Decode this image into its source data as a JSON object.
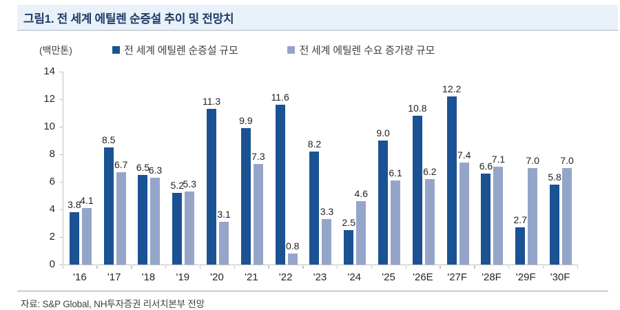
{
  "title": "그림1. 전 세계 에틸렌 순증설 추이 및 전망치",
  "unit_label": "(백만톤)",
  "source": "자료: S&P Global, NH투자증권 리서치본부 전망",
  "colors": {
    "series1": "#1a5294",
    "series2": "#95a5c9",
    "title_text": "#1f3a67",
    "title_bg": "#e9f1f9",
    "axis": "#bfbfbf"
  },
  "chart_data": {
    "type": "bar",
    "categories": [
      "'16",
      "'17",
      "'18",
      "'19",
      "'20",
      "'21",
      "'22",
      "'23",
      "'24",
      "'25",
      "'26E",
      "'27F",
      "'28F",
      "'29F",
      "'30F"
    ],
    "series": [
      {
        "name": "전 세계 에틸렌 순증설 규모",
        "color": "#1a5294",
        "values": [
          3.8,
          8.5,
          6.5,
          5.2,
          11.3,
          9.9,
          11.6,
          8.2,
          2.5,
          9.0,
          10.8,
          12.2,
          6.6,
          2.7,
          5.8
        ]
      },
      {
        "name": "전 세계 에틸렌 수요 증가량 규모",
        "color": "#95a5c9",
        "values": [
          4.1,
          6.7,
          6.3,
          5.3,
          3.1,
          7.3,
          0.8,
          3.3,
          4.6,
          6.1,
          6.2,
          7.4,
          7.1,
          7.0,
          7.0
        ]
      }
    ],
    "title": "전 세계 에틸렌 순증설 추이 및 전망치",
    "xlabel": "",
    "ylabel": "(백만톤)",
    "yticks": [
      0,
      2,
      4,
      6,
      8,
      10,
      12,
      14
    ],
    "ylim": [
      0,
      14
    ],
    "grid": false,
    "legend_position": "top"
  }
}
